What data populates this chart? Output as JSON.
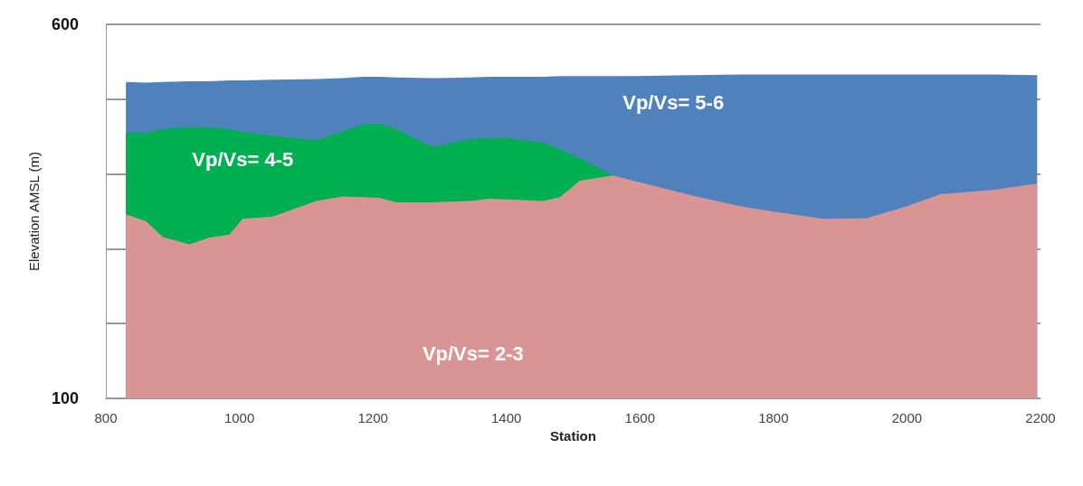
{
  "chart_data": {
    "type": "area",
    "xlabel": "Station",
    "ylabel": "Elevation AMSL (m)",
    "x": [
      830,
      860,
      885,
      925,
      955,
      985,
      1005,
      1050,
      1115,
      1155,
      1185,
      1210,
      1235,
      1290,
      1345,
      1375,
      1400,
      1455,
      1480,
      1510,
      1560,
      1590,
      1670,
      1750,
      1805,
      1875,
      1940,
      2000,
      2050,
      2130,
      2195
    ],
    "series": [
      {
        "name": "Vp/Vs= 5-6",
        "color": "#4f81bd",
        "values": [
          523,
          522,
          523,
          524,
          524,
          525,
          525,
          526,
          527,
          528,
          530,
          530,
          529,
          528,
          529,
          530,
          530,
          530,
          531,
          531,
          531,
          531,
          532,
          533,
          533,
          533,
          533,
          533,
          533,
          533,
          532
        ]
      },
      {
        "name": "Vp/Vs= 4-5",
        "color": "#00b050",
        "values": [
          455,
          455,
          460,
          463,
          462,
          460,
          456,
          451,
          445,
          457,
          466,
          467,
          460,
          436,
          447,
          448,
          448,
          442,
          433,
          421,
          398,
          null,
          null,
          null,
          null,
          null,
          null,
          null,
          null,
          null,
          null
        ]
      },
      {
        "name": "Vp/Vs= 2-3",
        "color": "#d99594",
        "values": [
          346,
          337,
          316,
          306,
          315,
          319,
          340,
          343,
          364,
          370,
          369,
          368,
          362,
          362,
          364,
          367,
          366,
          364,
          369,
          391,
          398,
          391,
          373,
          357,
          349,
          340,
          341,
          357,
          373,
          379,
          387
        ]
      }
    ],
    "xlim": [
      800,
      2200
    ],
    "xticks": [
      800,
      1000,
      1200,
      1400,
      1600,
      1800,
      2000,
      2200
    ],
    "ylim": [
      100,
      600
    ],
    "yticks": [
      100,
      {
        "value": 200,
        "label": null
      },
      {
        "value": 300,
        "label": null
      },
      {
        "value": 400,
        "label": null
      },
      {
        "value": 500,
        "label": null
      },
      600
    ],
    "grid": "y",
    "legend": false
  }
}
